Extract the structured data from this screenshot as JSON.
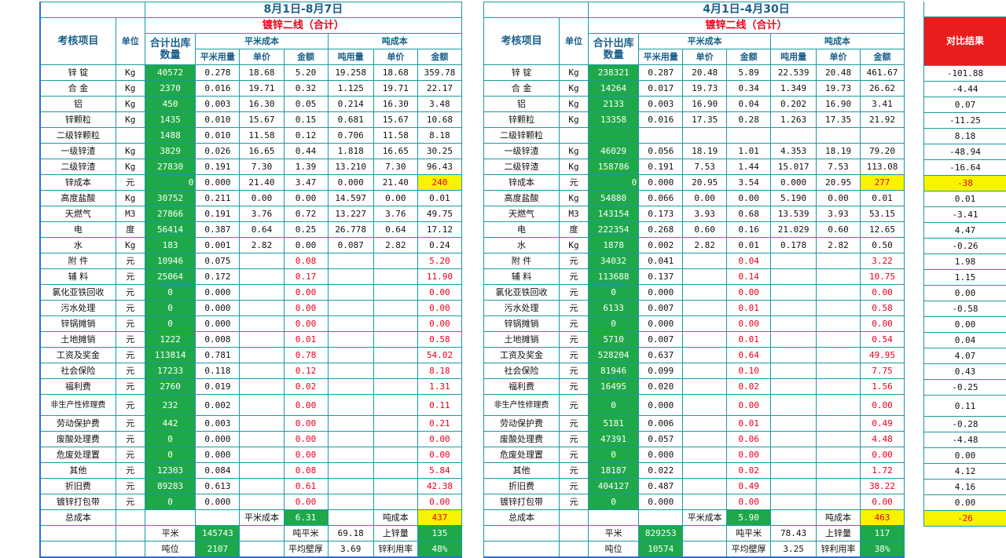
{
  "left": {
    "period": "8月1日-8月7日",
    "line": "镀锌二线（合计）",
    "headers": {
      "item": "考核项目",
      "unit": "单位",
      "qty": "合计出库数量",
      "sqm_group": "平米成本",
      "ton_group": "吨成本",
      "sqm_usage": "平米用量",
      "price": "单价",
      "amount": "金额",
      "ton_usage": "吨用量"
    },
    "rows": [
      [
        "锌 锭",
        "Kg",
        "40572",
        "0.278",
        "18.68",
        "5.20",
        "19.258",
        "18.68",
        "359.78"
      ],
      [
        "合 金",
        "Kg",
        "2370",
        "0.016",
        "19.71",
        "0.32",
        "1.125",
        "19.71",
        "22.17"
      ],
      [
        "铝",
        "Kg",
        "450",
        "0.003",
        "16.30",
        "0.05",
        "0.214",
        "16.30",
        "3.48"
      ],
      [
        "锌颗粒",
        "Kg",
        "1435",
        "0.010",
        "15.67",
        "0.15",
        "0.681",
        "15.67",
        "10.68"
      ],
      [
        "二级锌颗粒",
        "",
        "1488",
        "0.010",
        "11.58",
        "0.12",
        "0.706",
        "11.58",
        "8.18"
      ],
      [
        "一级锌渣",
        "Kg",
        "3829",
        "0.026",
        "16.65",
        "0.44",
        "1.818",
        "16.65",
        "30.25"
      ],
      [
        "二级锌渣",
        "Kg",
        "27830",
        "0.191",
        "7.30",
        "1.39",
        "13.210",
        "7.30",
        "96.43"
      ],
      [
        "锌成本",
        "元",
        "0",
        "0.000",
        "21.40",
        "3.47",
        "0.000",
        "21.40",
        "240"
      ],
      [
        "高度盐酸",
        "Kg",
        "30752",
        "0.211",
        "0.00",
        "0.00",
        "14.597",
        "0.00",
        "0.01"
      ],
      [
        "天燃气",
        "M3",
        "27866",
        "0.191",
        "3.76",
        "0.72",
        "13.227",
        "3.76",
        "49.75"
      ],
      [
        "电",
        "度",
        "56414",
        "0.387",
        "0.64",
        "0.25",
        "26.778",
        "0.64",
        "17.12"
      ],
      [
        "水",
        "Kg",
        "183",
        "0.001",
        "2.82",
        "0.00",
        "0.087",
        "2.82",
        "0.24"
      ],
      [
        "附 件",
        "元",
        "10946",
        "0.075",
        "",
        "0.08",
        "",
        "",
        "5.20"
      ],
      [
        "辅 料",
        "元",
        "25064",
        "0.172",
        "",
        "0.17",
        "",
        "",
        "11.90"
      ],
      [
        "氯化亚铁回收",
        "元",
        "0",
        "0.000",
        "",
        "0.00",
        "",
        "",
        "0.00"
      ],
      [
        "污水处理",
        "元",
        "0",
        "0.000",
        "",
        "0.00",
        "",
        "",
        "0.00"
      ],
      [
        "锌锅摊销",
        "元",
        "0",
        "0.000",
        "",
        "0.00",
        "",
        "",
        "0.00"
      ],
      [
        "土地摊销",
        "元",
        "1222",
        "0.008",
        "",
        "0.01",
        "",
        "",
        "0.58"
      ],
      [
        "工资及奖金",
        "元",
        "113814",
        "0.781",
        "",
        "0.78",
        "",
        "",
        "54.02"
      ],
      [
        "社会保险",
        "元",
        "17233",
        "0.118",
        "",
        "0.12",
        "",
        "",
        "8.18"
      ],
      [
        "福利费",
        "元",
        "2760",
        "0.019",
        "",
        "0.02",
        "",
        "",
        "1.31"
      ],
      [
        "非生产性修理费",
        "元",
        "232",
        "0.002",
        "",
        "0.00",
        "",
        "",
        "0.11"
      ],
      [
        "劳动保护费",
        "元",
        "442",
        "0.003",
        "",
        "0.00",
        "",
        "",
        "0.21"
      ],
      [
        "废酸处理费",
        "元",
        "0",
        "0.000",
        "",
        "0.00",
        "",
        "",
        "0.00"
      ],
      [
        "危废处理置",
        "元",
        "0",
        "0.000",
        "",
        "0.00",
        "",
        "",
        "0.00"
      ],
      [
        "其他",
        "元",
        "12303",
        "0.084",
        "",
        "0.08",
        "",
        "",
        "5.84"
      ],
      [
        "折旧费",
        "元",
        "89283",
        "0.613",
        "",
        "0.61",
        "",
        "",
        "42.38"
      ],
      [
        "镀锌打包带",
        "元",
        "0",
        "0.000",
        "",
        "0.00",
        "",
        "",
        "0.00"
      ]
    ],
    "total": {
      "label": "总成本",
      "sqm_cost_label": "平米成本",
      "sqm_cost": "6.31",
      "ton_cost_label": "吨成本",
      "ton_cost": "437"
    },
    "footer1": {
      "l1": "平米",
      "v1": "145743",
      "l2": "吨平米",
      "v2": "69.18",
      "l3": "上锌量",
      "v3": "135"
    },
    "footer2": {
      "l1": "吨位",
      "v1": "2107",
      "l2": "平均壁厚",
      "v2": "3.69",
      "l3": "锌利用率",
      "v3": "48%"
    }
  },
  "right": {
    "period": "4月1日-4月30日",
    "line": "镀锌二线（合计）",
    "headers": {
      "item": "考核项目",
      "unit": "单位",
      "qty": "合计出库数量",
      "sqm_group": "平米成本",
      "ton_group": "吨成本",
      "sqm_usage": "平米用量",
      "price": "单价",
      "amount": "金额",
      "ton_usage": "吨用量"
    },
    "rows": [
      [
        "锌 锭",
        "Kg",
        "238321",
        "0.287",
        "20.48",
        "5.89",
        "22.539",
        "20.48",
        "461.67"
      ],
      [
        "合 金",
        "Kg",
        "14264",
        "0.017",
        "19.73",
        "0.34",
        "1.349",
        "19.73",
        "26.62"
      ],
      [
        "铝",
        "Kg",
        "2133",
        "0.003",
        "16.90",
        "0.04",
        "0.202",
        "16.90",
        "3.41"
      ],
      [
        "锌颗粒",
        "Kg",
        "13358",
        "0.016",
        "17.35",
        "0.28",
        "1.263",
        "17.35",
        "21.92"
      ],
      [
        "二级锌颗粒",
        "",
        "",
        "",
        "",
        "",
        "",
        "",
        ""
      ],
      [
        "一级锌渣",
        "Kg",
        "46029",
        "0.056",
        "18.19",
        "1.01",
        "4.353",
        "18.19",
        "79.20"
      ],
      [
        "二级锌渣",
        "Kg",
        "158786",
        "0.191",
        "7.53",
        "1.44",
        "15.017",
        "7.53",
        "113.08"
      ],
      [
        "锌成本",
        "元",
        "0",
        "0.000",
        "20.95",
        "3.54",
        "0.000",
        "20.95",
        "277"
      ],
      [
        "高度盐酸",
        "Kg",
        "54880",
        "0.066",
        "0.00",
        "0.00",
        "5.190",
        "0.00",
        "0.01"
      ],
      [
        "天燃气",
        "M3",
        "143154",
        "0.173",
        "3.93",
        "0.68",
        "13.539",
        "3.93",
        "53.15"
      ],
      [
        "电",
        "度",
        "222354",
        "0.268",
        "0.60",
        "0.16",
        "21.029",
        "0.60",
        "12.65"
      ],
      [
        "水",
        "Kg",
        "1878",
        "0.002",
        "2.82",
        "0.01",
        "0.178",
        "2.82",
        "0.50"
      ],
      [
        "附 件",
        "元",
        "34032",
        "0.041",
        "",
        "0.04",
        "",
        "",
        "3.22"
      ],
      [
        "辅 料",
        "元",
        "113688",
        "0.137",
        "",
        "0.14",
        "",
        "",
        "10.75"
      ],
      [
        "氯化亚铁回收",
        "元",
        "0",
        "0.000",
        "",
        "0.00",
        "",
        "",
        "0.00"
      ],
      [
        "污水处理",
        "元",
        "6133",
        "0.007",
        "",
        "0.01",
        "",
        "",
        "0.58"
      ],
      [
        "锌锅摊销",
        "元",
        "0",
        "0.000",
        "",
        "0.00",
        "",
        "",
        "0.00"
      ],
      [
        "土地摊销",
        "元",
        "5710",
        "0.007",
        "",
        "0.01",
        "",
        "",
        "0.54"
      ],
      [
        "工资及奖金",
        "元",
        "528204",
        "0.637",
        "",
        "0.64",
        "",
        "",
        "49.95"
      ],
      [
        "社会保险",
        "元",
        "81946",
        "0.099",
        "",
        "0.10",
        "",
        "",
        "7.75"
      ],
      [
        "福利费",
        "元",
        "16495",
        "0.020",
        "",
        "0.02",
        "",
        "",
        "1.56"
      ],
      [
        "非生产性修理费",
        "元",
        "0",
        "0.000",
        "",
        "0.00",
        "",
        "",
        "0.00"
      ],
      [
        "劳动保护费",
        "元",
        "5181",
        "0.006",
        "",
        "0.01",
        "",
        "",
        "0.49"
      ],
      [
        "废酸处理费",
        "元",
        "47391",
        "0.057",
        "",
        "0.06",
        "",
        "",
        "4.48"
      ],
      [
        "危废处理置",
        "元",
        "0",
        "0.000",
        "",
        "0.00",
        "",
        "",
        "0.00"
      ],
      [
        "其他",
        "元",
        "18187",
        "0.022",
        "",
        "0.02",
        "",
        "",
        "1.72"
      ],
      [
        "折旧费",
        "元",
        "404127",
        "0.487",
        "",
        "0.49",
        "",
        "",
        "38.22"
      ],
      [
        "镀锌打包带",
        "元",
        "0",
        "0.000",
        "",
        "0.00",
        "",
        "",
        "0.00"
      ]
    ],
    "total": {
      "label": "总成本",
      "sqm_cost_label": "平米成本",
      "sqm_cost": "5.90",
      "ton_cost_label": "吨成本",
      "ton_cost": "463"
    },
    "footer1": {
      "l1": "平米",
      "v1": "829253",
      "l2": "吨平米",
      "v2": "78.43",
      "l3": "上锌量",
      "v3": "117"
    },
    "footer2": {
      "l1": "吨位",
      "v1": "10574",
      "l2": "平均壁厚",
      "v2": "3.25",
      "l3": "锌利用率",
      "v3": "38%"
    }
  },
  "compare": {
    "title": "对比结果",
    "values": [
      "-101.88",
      "-4.44",
      "0.07",
      "-11.25",
      "8.18",
      "-48.94",
      "-16.64",
      "-38",
      "0.01",
      "-3.41",
      "4.47",
      "-0.26",
      "1.98",
      "1.15",
      "0.00",
      "-0.58",
      "0.00",
      "0.04",
      "4.07",
      "0.43",
      "-0.25",
      "0.11",
      "-0.28",
      "-4.48",
      "0.00",
      "4.12",
      "4.16",
      "0.00"
    ],
    "total": "-26"
  },
  "colors": {
    "grid": "#1a9aa0",
    "green": "#1fa84a",
    "yellow": "#f8f400",
    "red": "#e8001a",
    "header_blue": "#1a5e8a",
    "result_red": "#ea1c1c"
  }
}
